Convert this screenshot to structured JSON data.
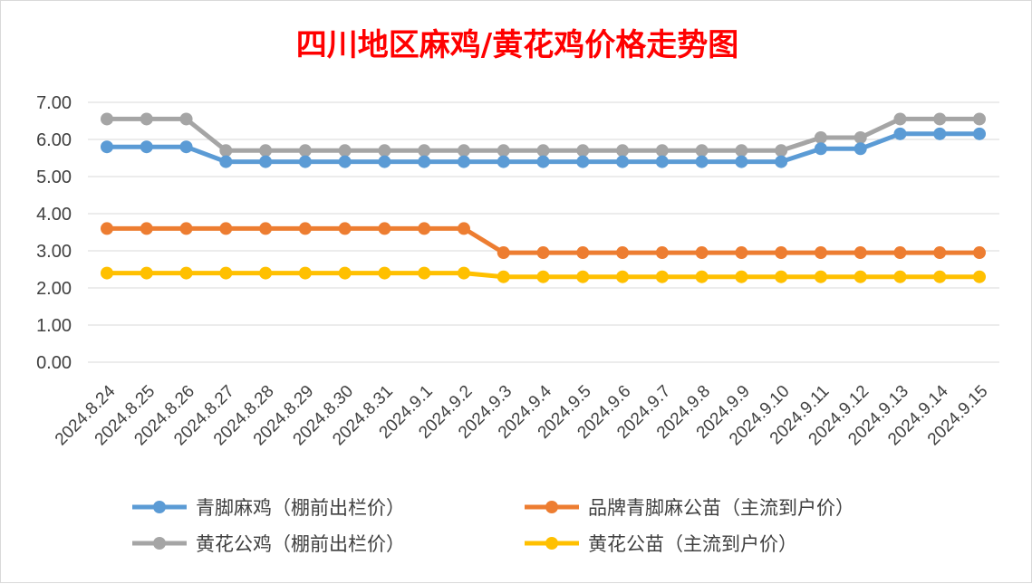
{
  "chart_data": {
    "type": "line",
    "title": "四川地区麻鸡/黄花鸡价格走势图",
    "xlabel": "",
    "ylabel": "",
    "ylim": [
      0,
      7
    ],
    "yticks": [
      "0.00",
      "1.00",
      "2.00",
      "3.00",
      "4.00",
      "5.00",
      "6.00",
      "7.00"
    ],
    "grid": true,
    "legend_position": "bottom",
    "categories": [
      "2024.8.24",
      "2024.8.25",
      "2024.8.26",
      "2024.8.27",
      "2024.8.28",
      "2024.8.29",
      "2024.8.30",
      "2024.8.31",
      "2024.9.1",
      "2024.9.2",
      "2024.9.3",
      "2024.9.4",
      "2024.9.5",
      "2024.9.6",
      "2024.9.7",
      "2024.9.8",
      "2024.9.9",
      "2024.9.10",
      "2024.9.11",
      "2024.9.12",
      "2024.9.13",
      "2024.9.14",
      "2024.9.15"
    ],
    "series": [
      {
        "name": "青脚麻鸡（棚前出栏价）",
        "color": "#5b9bd5",
        "values": [
          5.8,
          5.8,
          5.8,
          5.4,
          5.4,
          5.4,
          5.4,
          5.4,
          5.4,
          5.4,
          5.4,
          5.4,
          5.4,
          5.4,
          5.4,
          5.4,
          5.4,
          5.4,
          5.75,
          5.75,
          6.15,
          6.15,
          6.15
        ]
      },
      {
        "name": "品牌青脚麻公苗（主流到户价）",
        "color": "#ed7d31",
        "values": [
          3.6,
          3.6,
          3.6,
          3.6,
          3.6,
          3.6,
          3.6,
          3.6,
          3.6,
          3.6,
          2.95,
          2.95,
          2.95,
          2.95,
          2.95,
          2.95,
          2.95,
          2.95,
          2.95,
          2.95,
          2.95,
          2.95,
          2.95
        ]
      },
      {
        "name": "黄花公鸡（棚前出栏价）",
        "color": "#a5a5a5",
        "values": [
          6.55,
          6.55,
          6.55,
          5.7,
          5.7,
          5.7,
          5.7,
          5.7,
          5.7,
          5.7,
          5.7,
          5.7,
          5.7,
          5.7,
          5.7,
          5.7,
          5.7,
          5.7,
          6.05,
          6.05,
          6.55,
          6.55,
          6.55
        ]
      },
      {
        "name": "黄花公苗（主流到户价）",
        "color": "#ffc000",
        "values": [
          2.4,
          2.4,
          2.4,
          2.4,
          2.4,
          2.4,
          2.4,
          2.4,
          2.4,
          2.4,
          2.3,
          2.3,
          2.3,
          2.3,
          2.3,
          2.3,
          2.3,
          2.3,
          2.3,
          2.3,
          2.3,
          2.3,
          2.3
        ]
      }
    ]
  },
  "colors": {
    "title": "#ff0000",
    "grid": "#d9d9d9",
    "axis_text": "#404040"
  }
}
